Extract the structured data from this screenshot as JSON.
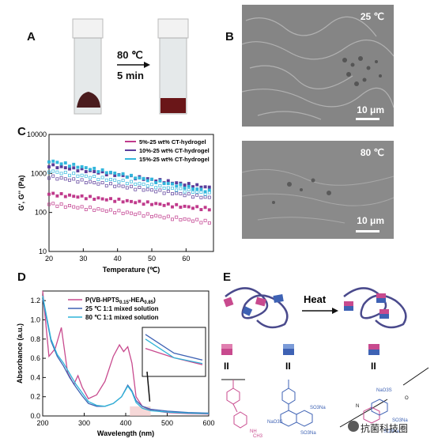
{
  "panels": {
    "A": {
      "label": "A",
      "arrow_top": "80 ℃",
      "arrow_bottom": "5 min"
    },
    "B": {
      "label": "B",
      "top_temp": "25 ℃",
      "top_scale": "10 μm",
      "bottom_temp": "80 ℃",
      "bottom_scale": "10 μm"
    },
    "C": {
      "label": "C"
    },
    "D": {
      "label": "D"
    },
    "E": {
      "label": "E",
      "heat": "Heat",
      "eq": "II",
      "chem_a": [
        "NH",
        "CH3"
      ],
      "chem_b": [
        "SO3Na",
        "NaO3S",
        "SO3Na"
      ],
      "chem_c": [
        "NaO3S",
        "SO3Na",
        "SO3Na",
        "O",
        "N"
      ]
    }
  },
  "watermark": "抗菌科技圈",
  "colors": {
    "magenta": "#c03a8c",
    "purple": "#5b3d9a",
    "cyan": "#32b6dc",
    "pink": "#c84a8e",
    "blue": "#3e62b4",
    "teal": "#2fb4d8"
  },
  "chart_data": [
    {
      "id": "C",
      "type": "scatter",
      "xlabel": "Temperature (℃)",
      "ylabel": "G', G'' (Pa)",
      "xlim": [
        20,
        68
      ],
      "ylim_log": [
        10,
        10000
      ],
      "log_y": true,
      "x_ticks": [
        20,
        30,
        40,
        50,
        60
      ],
      "y_ticks": [
        "10",
        "100",
        "1000",
        "10000"
      ],
      "legend_position": "top-right",
      "series": [
        {
          "name": "5%-25 wt% CT-hydrogel",
          "color": "#c03a8c",
          "G1": [
            300,
            120
          ],
          "G2": [
            165,
            55
          ]
        },
        {
          "name": "10%-25 wt% CT-hydrogel",
          "color": "#5b3d9a",
          "G1": [
            1600,
            420
          ],
          "G2": [
            820,
            230
          ]
        },
        {
          "name": "15%-25 wt% CT-hydrogel",
          "color": "#32b6dc",
          "G1": [
            2100,
            330
          ],
          "G2": [
            1150,
            290
          ]
        }
      ]
    },
    {
      "id": "D",
      "type": "line",
      "xlabel": "Wavelength (nm)",
      "ylabel": "Absorbance (a.u.)",
      "xlim": [
        200,
        600
      ],
      "ylim": [
        0,
        1.3
      ],
      "x_ticks": [
        200,
        300,
        400,
        500,
        600
      ],
      "y_ticks": [
        "0.0",
        "0.2",
        "0.4",
        "0.6",
        "0.8",
        "1.0",
        "1.2"
      ],
      "legend_position": "top-right",
      "series": [
        {
          "name": "P(VB-HPTS0.15-HEA0.85)",
          "label_main": "P(VB-HPTS",
          "label_sub1": "0.15",
          "label_mid": "-HEA",
          "label_sub2": "0.85",
          "label_end": ")",
          "color": "#c84a8e",
          "x": [
            200,
            215,
            230,
            245,
            260,
            275,
            285,
            295,
            310,
            330,
            350,
            370,
            385,
            395,
            405,
            415,
            425,
            440,
            460,
            500,
            550,
            600
          ],
          "y": [
            1.3,
            0.62,
            0.7,
            0.92,
            0.45,
            0.33,
            0.42,
            0.3,
            0.18,
            0.22,
            0.36,
            0.62,
            0.74,
            0.67,
            0.72,
            0.55,
            0.2,
            0.1,
            0.06,
            0.035,
            0.025,
            0.02
          ]
        },
        {
          "name": "25 ℃ 1:1 mixed solution",
          "color": "#3e62b4",
          "x": [
            200,
            210,
            220,
            235,
            250,
            265,
            280,
            295,
            310,
            330,
            350,
            370,
            390,
            405,
            415,
            425,
            440,
            460,
            500,
            550,
            600
          ],
          "y": [
            1.22,
            1.0,
            0.78,
            0.62,
            0.52,
            0.4,
            0.3,
            0.21,
            0.13,
            0.1,
            0.1,
            0.13,
            0.2,
            0.32,
            0.26,
            0.16,
            0.1,
            0.07,
            0.05,
            0.035,
            0.03
          ]
        },
        {
          "name": "80 ℃ 1:1 mixed solution",
          "color": "#2fb4d8",
          "x": [
            200,
            210,
            220,
            235,
            250,
            265,
            280,
            295,
            310,
            330,
            350,
            370,
            390,
            405,
            415,
            425,
            440,
            460,
            500,
            550,
            600
          ],
          "y": [
            1.25,
            1.02,
            0.8,
            0.64,
            0.55,
            0.44,
            0.33,
            0.24,
            0.15,
            0.11,
            0.1,
            0.13,
            0.2,
            0.31,
            0.25,
            0.14,
            0.08,
            0.055,
            0.04,
            0.03,
            0.025
          ]
        }
      ]
    }
  ]
}
